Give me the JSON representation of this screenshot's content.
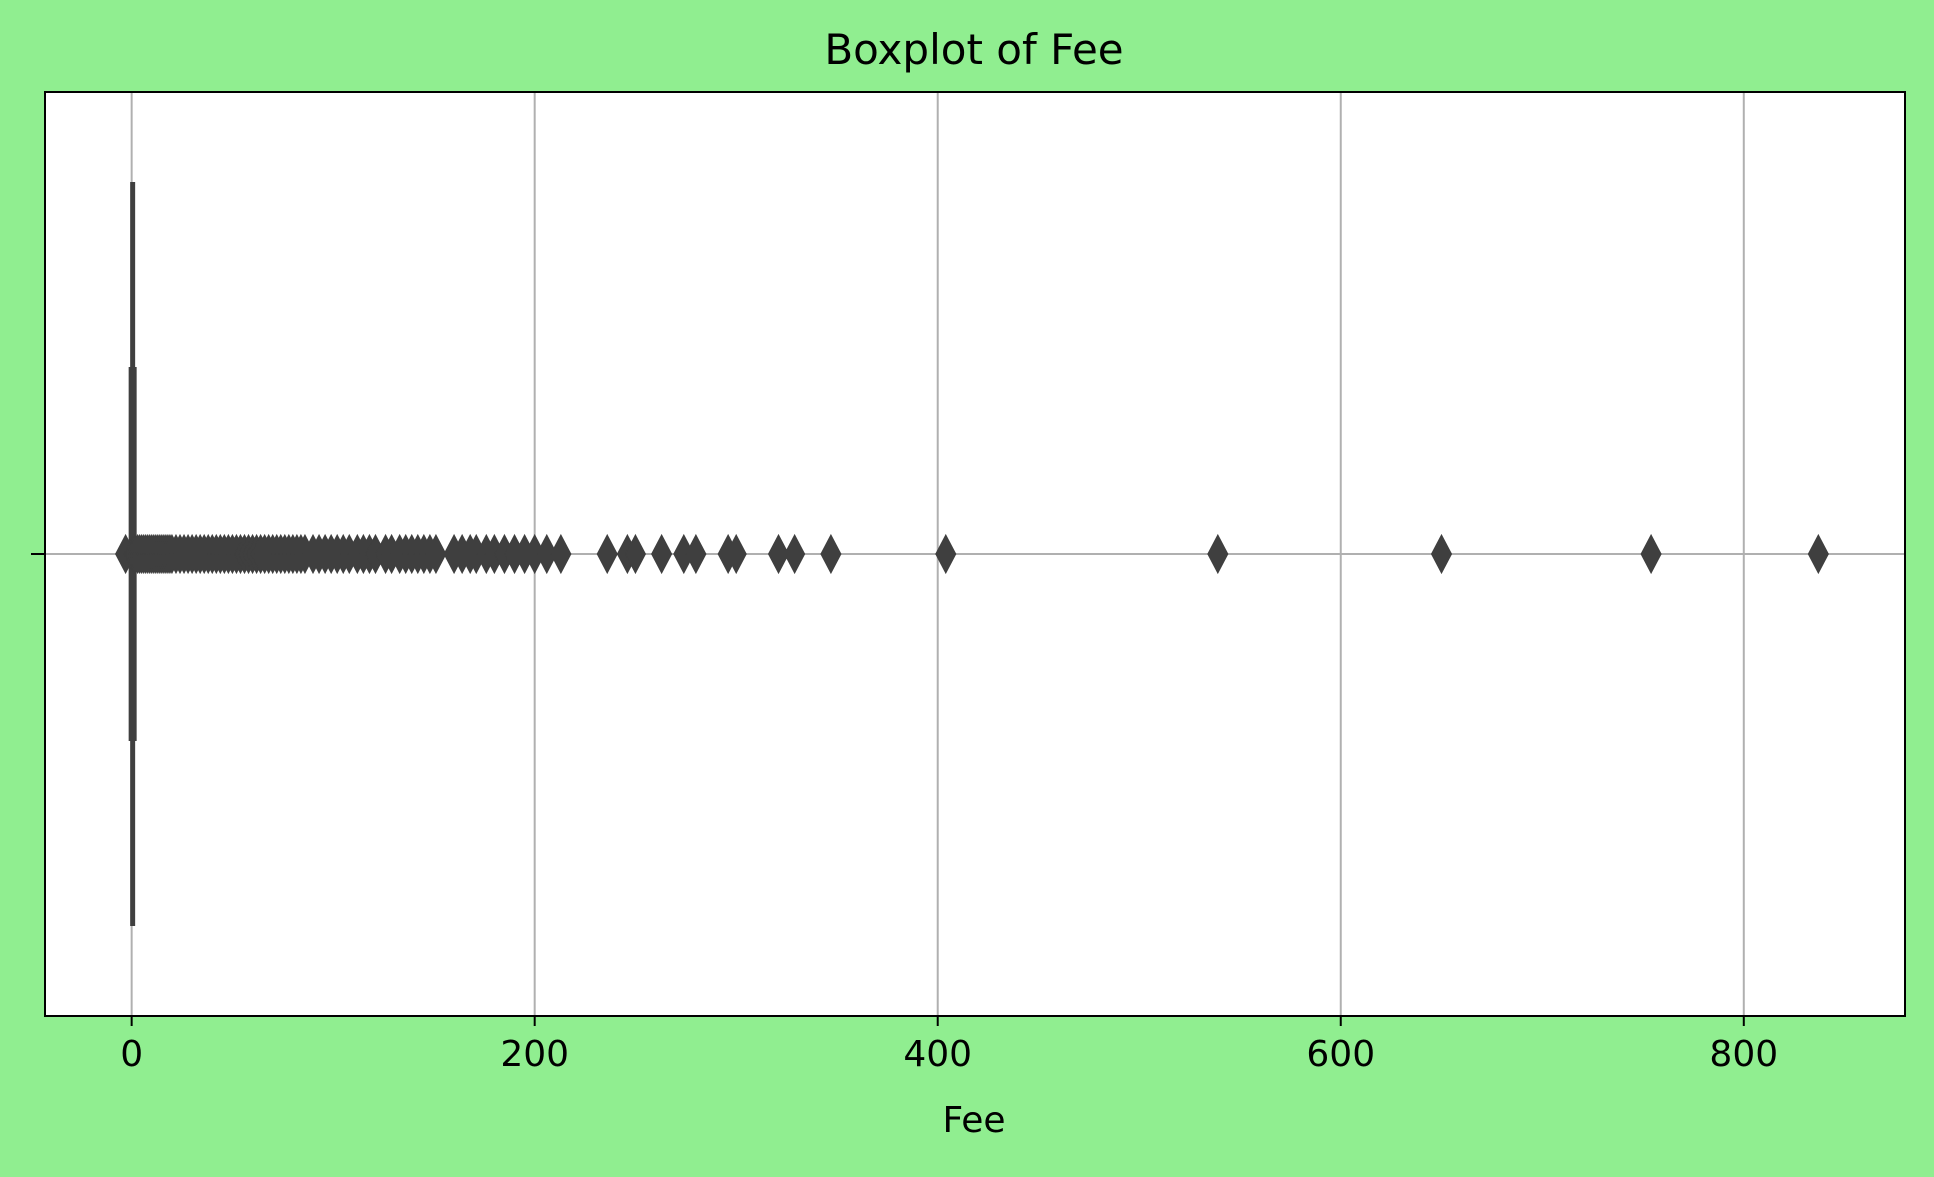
{
  "chart_data": {
    "type": "boxplot",
    "title": "Boxplot of Fee",
    "xlabel": "Fee",
    "ylabel": "",
    "xlim": [
      -43,
      880
    ],
    "xticks": [
      0,
      200,
      400,
      600,
      800
    ],
    "xtick_labels": [
      "0",
      "200",
      "400",
      "600",
      "800"
    ],
    "grid": true,
    "orientation": "horizontal",
    "box": {
      "q1": 0,
      "median": 0,
      "q3": 0.5,
      "whisker_low": 0,
      "whisker_high": 1
    },
    "outliers": [
      -3,
      1,
      2,
      3,
      4,
      5,
      6,
      7,
      8,
      9,
      10,
      11,
      12,
      13,
      14,
      15,
      16,
      17,
      18,
      19,
      20,
      22,
      24,
      26,
      28,
      30,
      32,
      34,
      36,
      38,
      40,
      42,
      44,
      46,
      48,
      50,
      52,
      54,
      56,
      58,
      60,
      62,
      64,
      66,
      68,
      70,
      72,
      74,
      76,
      78,
      80,
      82,
      84,
      86,
      90,
      93,
      96,
      99,
      102,
      105,
      108,
      112,
      115,
      118,
      121,
      126,
      129,
      133,
      136,
      139,
      142,
      145,
      148,
      151,
      160,
      164,
      168,
      171,
      176,
      180,
      185,
      190,
      195,
      200,
      206,
      213,
      236,
      246,
      250,
      263,
      274,
      280,
      296,
      300,
      321,
      329,
      347,
      404,
      539,
      650,
      754,
      837
    ],
    "colors": {
      "background": "#90ee90",
      "plot_area": "#ffffff",
      "box": "#3f3f3f",
      "grid": "#b0b0b0",
      "axis": "#000000"
    }
  }
}
